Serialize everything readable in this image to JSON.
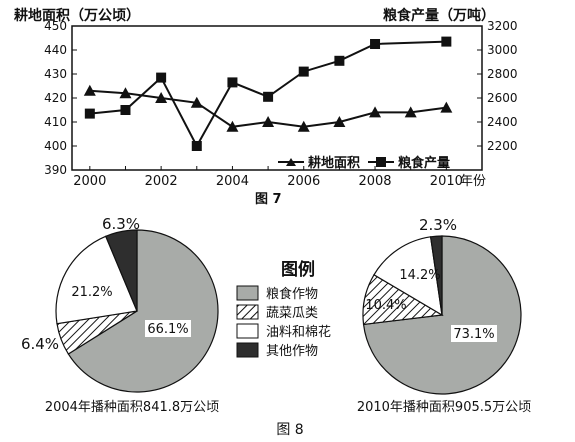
{
  "figure7": {
    "left_axis_title": "耕地面积（万公顷）",
    "right_axis_title": "粮食产量（万吨）",
    "x_axis_suffix": "年份",
    "caption": "图 7"
  },
  "figure8": {
    "legend_title": "图例",
    "caption": "图 8"
  },
  "chart_data": [
    {
      "type": "line",
      "x": [
        2000,
        2001,
        2002,
        2003,
        2004,
        2005,
        2006,
        2007,
        2008,
        2009,
        2010
      ],
      "x_tick_labels": [
        "2000",
        "2002",
        "2004",
        "2006",
        "2008",
        "2010"
      ],
      "ylabel_left": "耕地面积（万公顷）",
      "ylabel_right": "粮食产量（万吨）",
      "ylim_left": [
        390,
        450
      ],
      "y_ticks_left": [
        390,
        400,
        410,
        420,
        430,
        440,
        450
      ],
      "ylim_right": [
        2000,
        3200
      ],
      "y_ticks_right": [
        2200,
        2400,
        2600,
        2800,
        3000,
        3200
      ],
      "series": [
        {
          "name": "耕地面积",
          "axis": "left",
          "marker": "triangle",
          "values": [
            423,
            422,
            420,
            418,
            408,
            410,
            408,
            410,
            414,
            414,
            416
          ]
        },
        {
          "name": "粮食产量",
          "axis": "right",
          "marker": "square",
          "values": [
            2470,
            2500,
            2770,
            2200,
            2730,
            2610,
            2820,
            2910,
            3050,
            null,
            3070
          ]
        }
      ],
      "legend_position": "bottom-right",
      "grid": false
    },
    {
      "type": "pie",
      "caption": "2004年播种面积841.8万公顷",
      "labels": [
        "粮食作物",
        "蔬菜瓜类",
        "油料和棉花",
        "其他作物"
      ],
      "values": [
        66.1,
        6.4,
        21.2,
        6.3
      ],
      "value_labels": [
        "66.1%",
        "6.4%",
        "21.2%",
        "6.3%"
      ]
    },
    {
      "type": "pie",
      "caption": "2010年播种面积905.5万公顷",
      "labels": [
        "粮食作物",
        "蔬菜瓜类",
        "油料和棉花",
        "其他作物"
      ],
      "values": [
        73.1,
        10.4,
        14.2,
        2.3
      ],
      "value_labels": [
        "73.1%",
        "10.4%",
        "14.2%",
        "2.3%"
      ]
    }
  ],
  "colors": {
    "grain": "#a8aba8",
    "vegetable": "hatched",
    "oil_cotton": "#ffffff",
    "other": "#2e2e2e"
  }
}
